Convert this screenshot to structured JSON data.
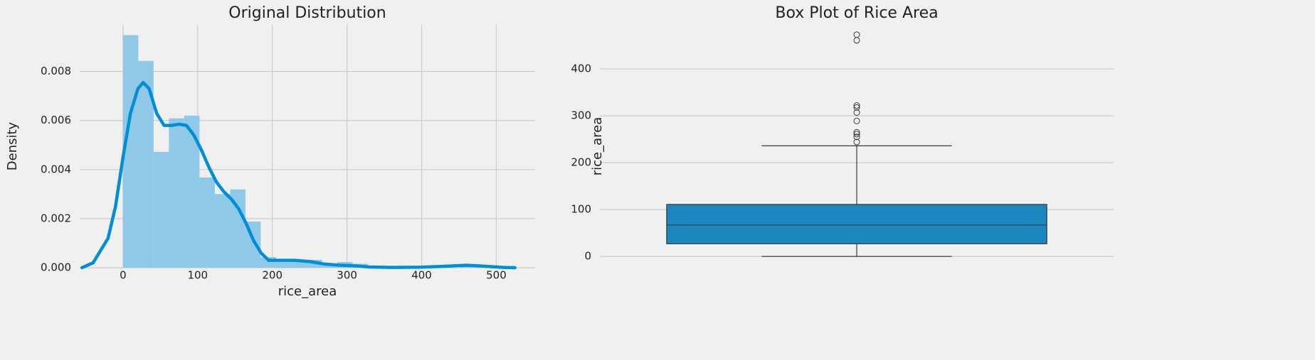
{
  "chart_data": [
    {
      "type": "histogram",
      "title": "Original Distribution",
      "xlabel": "rice_area",
      "ylabel": "Density",
      "bins": [
        0,
        20.5,
        41,
        61.5,
        82,
        102.5,
        123,
        143.5,
        164,
        184.5,
        205,
        225.5,
        246,
        266.5,
        287,
        307.5,
        328,
        348.5,
        369,
        389.5,
        410,
        430.5,
        451,
        471.5
      ],
      "counts": [
        0.00948,
        0.00843,
        0.00472,
        0.00609,
        0.0062,
        0.00368,
        0.003,
        0.00319,
        0.00188,
        0.00043,
        0.00026,
        0.0003,
        0.00032,
        0.0001,
        0.00023,
        0.00016,
        0,
        0,
        0,
        0,
        0,
        0,
        0.00014
      ],
      "color": "#8fc9e7",
      "kde": {
        "color": "#008fd5",
        "x": [
          -55,
          -40,
          -20,
          -10,
          0,
          10,
          20,
          27,
          35,
          45,
          55,
          65,
          75,
          85,
          95,
          105,
          115,
          125,
          135,
          145,
          155,
          165,
          175,
          185,
          195,
          210,
          230,
          250,
          270,
          290,
          310,
          330,
          360,
          400,
          440,
          460,
          480,
          510,
          525
        ],
        "y": [
          0,
          0.0002,
          0.0012,
          0.0025,
          0.0045,
          0.0063,
          0.0073,
          0.00755,
          0.0073,
          0.0063,
          0.0058,
          0.0058,
          0.00585,
          0.0058,
          0.0054,
          0.0048,
          0.0041,
          0.0035,
          0.0031,
          0.0028,
          0.0024,
          0.0018,
          0.0011,
          0.0006,
          0.0003,
          0.0003,
          0.0003,
          0.00025,
          0.00015,
          0.0001,
          8e-05,
          3e-05,
          1e-05,
          2e-05,
          7e-05,
          0.0001,
          7e-05,
          1e-05,
          0
        ]
      },
      "xlim": [
        -58,
        552
      ],
      "ylim": [
        0,
        0.0099
      ],
      "xticks": [
        0,
        100,
        200,
        300,
        400,
        500
      ],
      "yticks": [
        {
          "value": 0,
          "label": "0.000"
        },
        {
          "value": 0.002,
          "label": "0.002"
        },
        {
          "value": 0.004,
          "label": "0.004"
        },
        {
          "value": 0.006,
          "label": "0.006"
        },
        {
          "value": 0.008,
          "label": "0.008"
        }
      ],
      "grid": true
    },
    {
      "type": "box",
      "title": "Box Plot of Rice Area",
      "ylabel": "rice_area",
      "color": "#1b87bf",
      "whislo": 0,
      "q1": 27,
      "med": 67,
      "q3": 111,
      "whishi": 236,
      "fliers": [
        473,
        461,
        322,
        318,
        307,
        289,
        265,
        261,
        255,
        244
      ],
      "ylim": [
        -24,
        494
      ],
      "yticks": [
        0,
        100,
        200,
        300,
        400
      ],
      "grid": true
    }
  ]
}
